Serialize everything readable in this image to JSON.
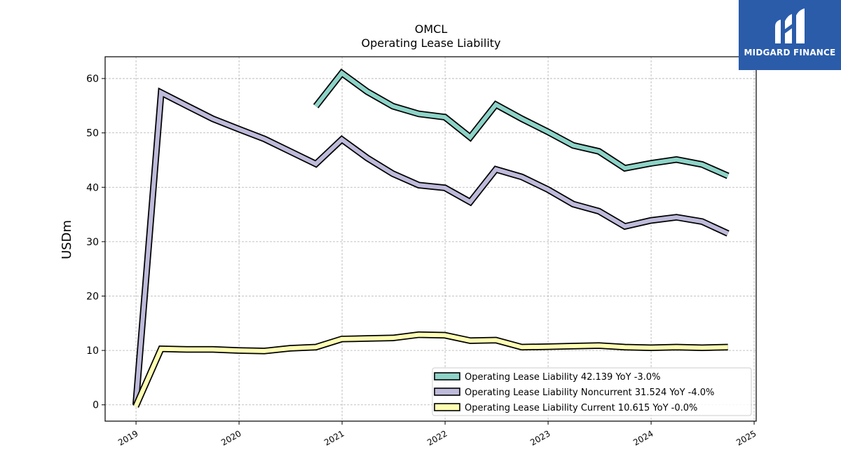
{
  "brand": {
    "name": "MIDGARD FINANCE",
    "color": "#2a5caa"
  },
  "chart_data": {
    "type": "line",
    "title": "OMCL",
    "subtitle": "Operating Lease Liability",
    "ylabel": "USDm",
    "xlabel": "",
    "ylim": [
      -3,
      64
    ],
    "xlim": [
      2018.7,
      2025.02
    ],
    "yticks": [
      0,
      10,
      20,
      30,
      40,
      50,
      60
    ],
    "xticks": [
      "2019",
      "2020",
      "2021",
      "2022",
      "2023",
      "2024",
      "2025"
    ],
    "grid": true,
    "legend_position": "lower-right",
    "series": [
      {
        "name": "Operating Lease Liability",
        "legend_label": "Operating Lease Liability  42.139 YoY -3.0%",
        "color": "#8dd3c7",
        "points": [
          [
            "2020-09-30",
            54.9
          ],
          [
            "2020-12-31",
            61.0
          ],
          [
            "2021-03-31",
            57.6
          ],
          [
            "2021-06-30",
            54.9
          ],
          [
            "2021-09-30",
            53.5
          ],
          [
            "2021-12-31",
            52.9
          ],
          [
            "2022-03-31",
            49.2
          ],
          [
            "2022-06-30",
            55.2
          ],
          [
            "2022-09-30",
            52.6
          ],
          [
            "2022-12-31",
            50.2
          ],
          [
            "2023-03-31",
            47.7
          ],
          [
            "2023-06-30",
            46.6
          ],
          [
            "2023-09-30",
            43.5
          ],
          [
            "2023-12-31",
            44.4
          ],
          [
            "2024-03-31",
            45.1
          ],
          [
            "2024-06-30",
            44.2
          ],
          [
            "2024-09-30",
            42.1
          ]
        ]
      },
      {
        "name": "Operating Lease Liability Noncurrent",
        "legend_label": "Operating Lease Liability Noncurrent  31.524 YoY -4.0%",
        "color": "#bebada",
        "points": [
          [
            "2018-12-31",
            0.0
          ],
          [
            "2019-03-31",
            57.4
          ],
          [
            "2019-06-30",
            55.0
          ],
          [
            "2019-09-30",
            52.6
          ],
          [
            "2019-12-31",
            50.7
          ],
          [
            "2020-03-31",
            48.9
          ],
          [
            "2020-06-30",
            46.6
          ],
          [
            "2020-09-30",
            44.3
          ],
          [
            "2020-12-31",
            48.8
          ],
          [
            "2021-03-31",
            45.4
          ],
          [
            "2021-06-30",
            42.5
          ],
          [
            "2021-09-30",
            40.4
          ],
          [
            "2021-12-31",
            39.9
          ],
          [
            "2022-03-31",
            37.3
          ],
          [
            "2022-06-30",
            43.3
          ],
          [
            "2022-09-30",
            41.9
          ],
          [
            "2022-12-31",
            39.6
          ],
          [
            "2023-03-31",
            36.9
          ],
          [
            "2023-06-30",
            35.6
          ],
          [
            "2023-09-30",
            32.8
          ],
          [
            "2023-12-31",
            33.9
          ],
          [
            "2024-03-31",
            34.5
          ],
          [
            "2024-06-30",
            33.7
          ],
          [
            "2024-09-30",
            31.5
          ]
        ]
      },
      {
        "name": "Operating Lease Liability Current",
        "legend_label": "Operating Lease Liability Current  10.615 YoY -0.0%",
        "color": "#ffffb3",
        "points": [
          [
            "2018-12-31",
            -0.3
          ],
          [
            "2019-03-31",
            10.3
          ],
          [
            "2019-06-30",
            10.2
          ],
          [
            "2019-09-30",
            10.2
          ],
          [
            "2019-12-31",
            10.0
          ],
          [
            "2020-03-31",
            9.9
          ],
          [
            "2020-06-30",
            10.4
          ],
          [
            "2020-09-30",
            10.6
          ],
          [
            "2020-12-31",
            12.1
          ],
          [
            "2021-03-31",
            12.2
          ],
          [
            "2021-06-30",
            12.3
          ],
          [
            "2021-09-30",
            12.9
          ],
          [
            "2021-12-31",
            12.8
          ],
          [
            "2022-03-31",
            11.8
          ],
          [
            "2022-06-30",
            11.9
          ],
          [
            "2022-09-30",
            10.6
          ],
          [
            "2022-12-31",
            10.7
          ],
          [
            "2023-03-31",
            10.8
          ],
          [
            "2023-06-30",
            10.9
          ],
          [
            "2023-09-30",
            10.6
          ],
          [
            "2023-12-31",
            10.5
          ],
          [
            "2024-03-31",
            10.6
          ],
          [
            "2024-06-30",
            10.5
          ],
          [
            "2024-09-30",
            10.6
          ]
        ]
      }
    ]
  }
}
